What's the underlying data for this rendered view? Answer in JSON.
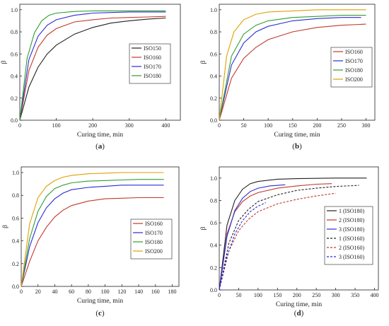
{
  "chart_data": [
    {
      "id": "a",
      "type": "line",
      "panel_label": "(a)",
      "xlabel": "Curing time, min",
      "ylabel": "β",
      "xlim": [
        0,
        440
      ],
      "ylim": [
        0,
        1.05
      ],
      "xticks": [
        "0",
        "100",
        "200",
        "300",
        "400"
      ],
      "yticks": [
        "0.0",
        "0.2",
        "0.4",
        "0.6",
        "0.8",
        "1.0"
      ],
      "xtick_values": [
        0,
        100,
        200,
        300,
        400
      ],
      "ytick_values": [
        0,
        0.2,
        0.4,
        0.6,
        0.8,
        1.0
      ],
      "legend_position": "center-right",
      "series": [
        {
          "name": "ISO150",
          "color": "#222222",
          "dash": "solid",
          "x": [
            0,
            25,
            50,
            75,
            100,
            150,
            200,
            250,
            300,
            350,
            400
          ],
          "y": [
            0,
            0.3,
            0.48,
            0.6,
            0.68,
            0.78,
            0.84,
            0.88,
            0.9,
            0.915,
            0.925
          ]
        },
        {
          "name": "ISO160",
          "color": "#c0392b",
          "dash": "solid",
          "x": [
            0,
            25,
            50,
            75,
            100,
            150,
            200,
            250,
            300,
            350,
            400
          ],
          "y": [
            0,
            0.45,
            0.66,
            0.77,
            0.83,
            0.89,
            0.91,
            0.925,
            0.93,
            0.935,
            0.94
          ]
        },
        {
          "name": "ISO170",
          "color": "#2b2bd6",
          "dash": "solid",
          "x": [
            0,
            25,
            50,
            75,
            100,
            150,
            200,
            250,
            300,
            350,
            400
          ],
          "y": [
            0,
            0.55,
            0.76,
            0.86,
            0.91,
            0.95,
            0.97,
            0.975,
            0.98,
            0.98,
            0.98
          ]
        },
        {
          "name": "ISO180",
          "color": "#2e9e2e",
          "dash": "solid",
          "x": [
            0,
            20,
            40,
            60,
            80,
            100,
            150,
            200,
            300,
            400
          ],
          "y": [
            0,
            0.56,
            0.79,
            0.9,
            0.95,
            0.97,
            0.985,
            0.99,
            0.99,
            0.99
          ]
        }
      ]
    },
    {
      "id": "b",
      "type": "line",
      "panel_label": "(b)",
      "xlabel": "Curing time, min",
      "ylabel": "β",
      "xlim": [
        0,
        318
      ],
      "ylim": [
        0,
        1.05
      ],
      "xticks": [
        "0",
        "50",
        "100",
        "150",
        "200",
        "250",
        "300"
      ],
      "yticks": [
        "0.0",
        "0.2",
        "0.4",
        "0.6",
        "0.8",
        "1.0"
      ],
      "xtick_values": [
        0,
        50,
        100,
        150,
        200,
        250,
        300
      ],
      "ytick_values": [
        0,
        0.2,
        0.4,
        0.6,
        0.8,
        1.0
      ],
      "legend_position": "center-right",
      "series": [
        {
          "name": "ISO160",
          "color": "#c0392b",
          "dash": "solid",
          "x": [
            0,
            25,
            50,
            75,
            100,
            150,
            200,
            250,
            300
          ],
          "y": [
            0,
            0.38,
            0.56,
            0.66,
            0.73,
            0.8,
            0.84,
            0.86,
            0.87
          ]
        },
        {
          "name": "ISO170",
          "color": "#2b2bd6",
          "dash": "solid",
          "x": [
            0,
            25,
            50,
            75,
            100,
            150,
            200,
            250,
            290
          ],
          "y": [
            0,
            0.5,
            0.7,
            0.8,
            0.85,
            0.9,
            0.92,
            0.93,
            0.93
          ]
        },
        {
          "name": "ISO180",
          "color": "#2e9e2e",
          "dash": "solid",
          "x": [
            0,
            25,
            50,
            75,
            100,
            150,
            200,
            250,
            300
          ],
          "y": [
            0,
            0.58,
            0.78,
            0.86,
            0.9,
            0.93,
            0.94,
            0.95,
            0.95
          ]
        },
        {
          "name": "ISO200",
          "color": "#e0a000",
          "dash": "solid",
          "x": [
            0,
            15,
            30,
            50,
            75,
            100,
            150,
            200,
            250,
            300
          ],
          "y": [
            0,
            0.58,
            0.8,
            0.91,
            0.96,
            0.98,
            0.99,
            1.0,
            1.0,
            1.0
          ]
        }
      ]
    },
    {
      "id": "c",
      "type": "line",
      "panel_label": "(c)",
      "xlabel": "Curing time, min",
      "ylabel": "β",
      "xlim": [
        0,
        188
      ],
      "ylim": [
        0,
        1.05
      ],
      "xticks": [
        "0",
        "20",
        "40",
        "60",
        "80",
        "100",
        "120",
        "140",
        "160",
        "180"
      ],
      "yticks": [
        "0.0",
        "0.2",
        "0.4",
        "0.6",
        "0.8",
        "1.0"
      ],
      "xtick_values": [
        0,
        20,
        40,
        60,
        80,
        100,
        120,
        140,
        160,
        180
      ],
      "ytick_values": [
        0,
        0.2,
        0.4,
        0.6,
        0.8,
        1.0
      ],
      "legend_position": "center-right",
      "series": [
        {
          "name": "ISO160",
          "color": "#c0392b",
          "dash": "solid",
          "x": [
            0,
            10,
            20,
            30,
            40,
            50,
            60,
            80,
            100,
            120,
            140,
            170
          ],
          "y": [
            0,
            0.22,
            0.4,
            0.52,
            0.61,
            0.67,
            0.71,
            0.75,
            0.77,
            0.775,
            0.78,
            0.78
          ]
        },
        {
          "name": "ISO170",
          "color": "#2b2bd6",
          "dash": "solid",
          "x": [
            0,
            10,
            20,
            30,
            40,
            50,
            60,
            80,
            100,
            120,
            140,
            170
          ],
          "y": [
            0,
            0.35,
            0.56,
            0.69,
            0.77,
            0.82,
            0.85,
            0.87,
            0.88,
            0.89,
            0.89,
            0.89
          ]
        },
        {
          "name": "ISO180",
          "color": "#2e9e2e",
          "dash": "solid",
          "x": [
            0,
            10,
            20,
            30,
            40,
            50,
            60,
            80,
            100,
            120,
            140,
            170
          ],
          "y": [
            0,
            0.42,
            0.66,
            0.79,
            0.86,
            0.89,
            0.91,
            0.925,
            0.93,
            0.935,
            0.94,
            0.94
          ]
        },
        {
          "name": "ISO200",
          "color": "#e0a000",
          "dash": "solid",
          "x": [
            0,
            10,
            20,
            30,
            40,
            50,
            60,
            80,
            100,
            120,
            140,
            170
          ],
          "y": [
            0,
            0.55,
            0.78,
            0.88,
            0.93,
            0.96,
            0.975,
            0.99,
            0.995,
            1.0,
            1.0,
            1.0
          ]
        }
      ]
    },
    {
      "id": "d",
      "type": "line",
      "panel_label": "(d)",
      "xlabel": "Curing time, min",
      "ylabel": "β",
      "xlim": [
        0,
        410
      ],
      "ylim": [
        0,
        1.1
      ],
      "xticks": [
        "0",
        "50",
        "100",
        "150",
        "200",
        "250",
        "300",
        "350",
        "400"
      ],
      "yticks": [
        "0.0",
        "0.2",
        "0.4",
        "0.6",
        "0.8",
        "1.0"
      ],
      "xtick_values": [
        0,
        50,
        100,
        150,
        200,
        250,
        300,
        350,
        400
      ],
      "ytick_values": [
        0,
        0.2,
        0.4,
        0.6,
        0.8,
        1.0
      ],
      "legend_position": "bottom-right",
      "series": [
        {
          "name": "1 (ISO180)",
          "color": "#222222",
          "dash": "solid",
          "x": [
            0,
            20,
            40,
            60,
            80,
            100,
            150,
            200,
            300,
            380
          ],
          "y": [
            0,
            0.58,
            0.8,
            0.9,
            0.95,
            0.97,
            0.99,
            0.995,
            1.0,
            1.0
          ]
        },
        {
          "name": "2 (ISO180)",
          "color": "#c0392b",
          "dash": "solid",
          "x": [
            0,
            20,
            40,
            60,
            80,
            100,
            150,
            200,
            250,
            290
          ],
          "y": [
            0,
            0.5,
            0.7,
            0.79,
            0.84,
            0.87,
            0.91,
            0.93,
            0.945,
            0.95
          ]
        },
        {
          "name": "3 (ISO180)",
          "color": "#2b2bd6",
          "dash": "solid",
          "x": [
            0,
            20,
            40,
            60,
            80,
            100,
            130,
            170
          ],
          "y": [
            0,
            0.48,
            0.71,
            0.82,
            0.88,
            0.91,
            0.93,
            0.94
          ]
        },
        {
          "name": "1 (ISO160)",
          "color": "#222222",
          "dash": "dashed",
          "x": [
            0,
            25,
            50,
            75,
            100,
            150,
            200,
            250,
            300,
            360
          ],
          "y": [
            0,
            0.42,
            0.62,
            0.72,
            0.79,
            0.85,
            0.89,
            0.91,
            0.925,
            0.935
          ]
        },
        {
          "name": "2 (ISO160)",
          "color": "#c0392b",
          "dash": "dashed",
          "x": [
            0,
            25,
            50,
            75,
            100,
            150,
            200,
            250,
            300
          ],
          "y": [
            0,
            0.35,
            0.53,
            0.63,
            0.7,
            0.77,
            0.81,
            0.84,
            0.865
          ]
        },
        {
          "name": "3 (ISO160)",
          "color": "#2b2bd6",
          "dash": "dashed",
          "x": [
            0,
            20,
            40,
            60,
            80,
            100,
            120
          ],
          "y": [
            0,
            0.3,
            0.5,
            0.62,
            0.7,
            0.75,
            0.78
          ]
        }
      ]
    }
  ]
}
